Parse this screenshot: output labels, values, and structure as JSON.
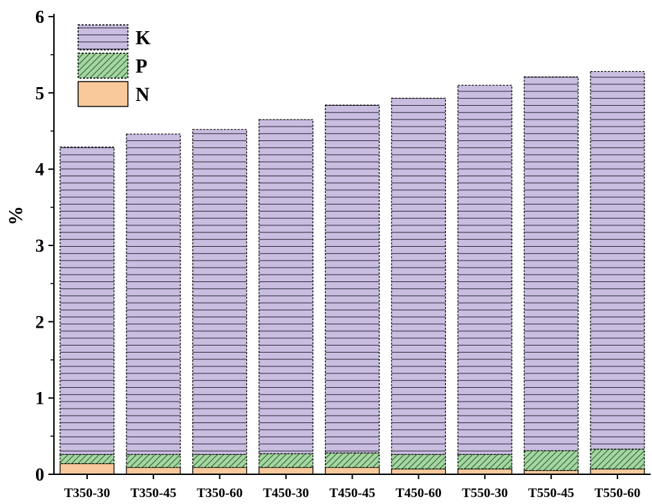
{
  "chart_data": {
    "type": "bar",
    "stacked": true,
    "title": "",
    "xlabel": "",
    "ylabel": "%",
    "ylim": [
      0,
      6
    ],
    "yticks": [
      "0",
      "1",
      "2",
      "3",
      "4",
      "5",
      "6"
    ],
    "grid": false,
    "legend_position": "top-left",
    "categories": [
      "T350-30",
      "T350-45",
      "T350-60",
      "T450-30",
      "T450-45",
      "T450-60",
      "T550-30",
      "T550-45",
      "T550-60"
    ],
    "series": [
      {
        "name": "N",
        "color": "#f9c99b",
        "pattern": "solid",
        "values": [
          0.14,
          0.09,
          0.09,
          0.09,
          0.09,
          0.07,
          0.07,
          0.05,
          0.07
        ]
      },
      {
        "name": "P",
        "color": "#a3d6a0",
        "pattern": "diagonal-hatch",
        "values": [
          0.12,
          0.17,
          0.17,
          0.18,
          0.19,
          0.19,
          0.19,
          0.26,
          0.26
        ]
      },
      {
        "name": "K",
        "color": "#c9bde0",
        "pattern": "horizontal-lines",
        "values": [
          4.03,
          4.2,
          4.26,
          4.38,
          4.56,
          4.67,
          4.84,
          4.9,
          4.95
        ]
      }
    ],
    "legend_order": [
      "K",
      "P",
      "N"
    ]
  }
}
